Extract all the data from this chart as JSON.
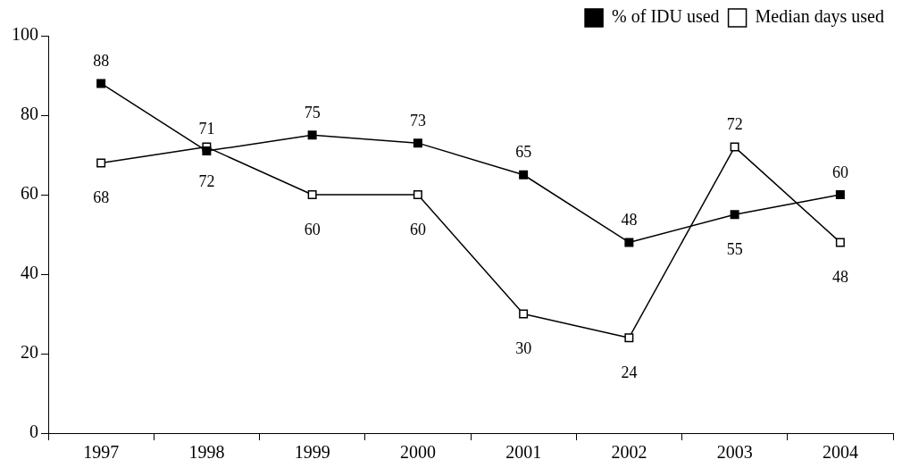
{
  "chart_data": {
    "type": "line",
    "categories": [
      "1997",
      "1998",
      "1999",
      "2000",
      "2001",
      "2002",
      "2003",
      "2004"
    ],
    "series": [
      {
        "name": "% of IDU used",
        "color": "#000000",
        "values": [
          88,
          71,
          75,
          73,
          65,
          48,
          55,
          60
        ]
      },
      {
        "name": "Median days used",
        "color": "#000000",
        "values": [
          68,
          72,
          60,
          60,
          30,
          24,
          72,
          48
        ]
      }
    ],
    "ylim": [
      0,
      100
    ],
    "yticks": [
      0,
      20,
      40,
      60,
      80,
      100
    ],
    "grid": false,
    "legend": "top right",
    "marker": "square",
    "line_style": "solid",
    "data_labels": true
  }
}
